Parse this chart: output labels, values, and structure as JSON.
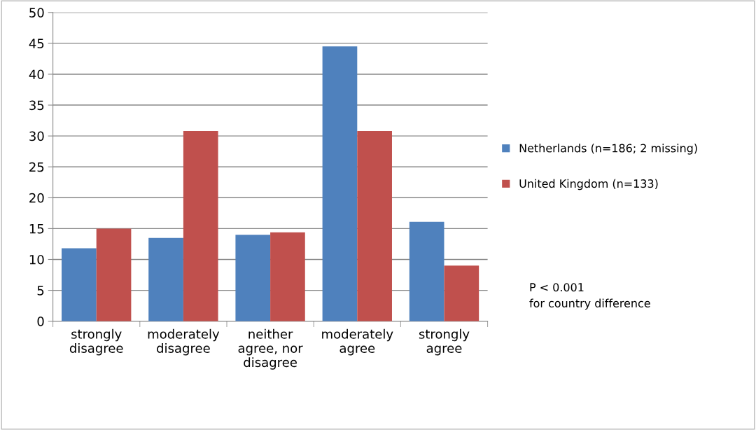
{
  "chart_data": {
    "type": "bar",
    "categories": [
      "strongly\ndisagree",
      "moderately\ndisagree",
      "neither\nagree, nor\ndisagree",
      "moderately\nagree",
      "strongly\nagree"
    ],
    "series": [
      {
        "name": "Netherlands (n=186; 2 missing)",
        "color": "#4f81bd",
        "values": [
          11.8,
          13.5,
          14.0,
          44.5,
          16.1
        ]
      },
      {
        "name": "United Kingdom (n=133)",
        "color": "#c0504d",
        "values": [
          15.0,
          30.8,
          14.4,
          30.8,
          9.0
        ]
      }
    ],
    "ylim": [
      0,
      50
    ],
    "yticks": [
      0,
      5,
      10,
      15,
      20,
      25,
      30,
      35,
      40,
      45,
      50
    ],
    "grid": "y",
    "legend": "right",
    "annotations": [
      "P < 0.001\nfor country difference"
    ]
  }
}
